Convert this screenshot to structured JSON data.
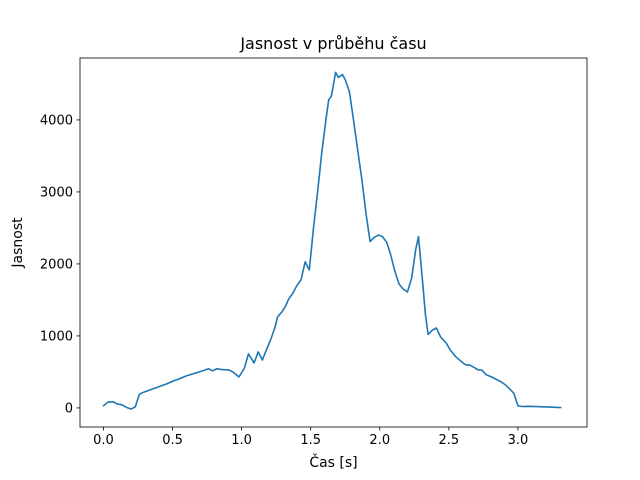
{
  "chart_data": {
    "type": "line",
    "title": "Jasnost v průběhu času",
    "xlabel": "Čas [s]",
    "ylabel": "Jasnost",
    "line_color": "#1f77b4",
    "grid": false,
    "legend": null,
    "xlim": [
      -0.17,
      3.5
    ],
    "ylim": [
      -265,
      4860
    ],
    "x_ticks": [
      0.0,
      0.5,
      1.0,
      1.5,
      2.0,
      2.5,
      3.0
    ],
    "x_tick_labels": [
      "0.0",
      "0.5",
      "1.0",
      "1.5",
      "2.0",
      "2.5",
      "3.0"
    ],
    "y_ticks": [
      0,
      1000,
      2000,
      3000,
      4000
    ],
    "y_tick_labels": [
      "0",
      "1000",
      "2000",
      "3000",
      "4000"
    ],
    "series": [
      {
        "name": "jasnost",
        "x": [
          0.0,
          0.03,
          0.07,
          0.1,
          0.13,
          0.17,
          0.2,
          0.23,
          0.26,
          0.3,
          0.35,
          0.4,
          0.45,
          0.5,
          0.55,
          0.6,
          0.65,
          0.7,
          0.74,
          0.76,
          0.79,
          0.82,
          0.85,
          0.88,
          0.91,
          0.94,
          0.98,
          1.02,
          1.05,
          1.09,
          1.12,
          1.15,
          1.18,
          1.21,
          1.24,
          1.26,
          1.29,
          1.32,
          1.34,
          1.37,
          1.4,
          1.43,
          1.46,
          1.49,
          1.52,
          1.55,
          1.58,
          1.61,
          1.63,
          1.65,
          1.68,
          1.7,
          1.73,
          1.75,
          1.78,
          1.81,
          1.84,
          1.87,
          1.9,
          1.93,
          1.96,
          1.99,
          2.02,
          2.05,
          2.08,
          2.11,
          2.14,
          2.17,
          2.2,
          2.23,
          2.26,
          2.28,
          2.31,
          2.33,
          2.35,
          2.38,
          2.41,
          2.44,
          2.48,
          2.51,
          2.55,
          2.59,
          2.62,
          2.65,
          2.68,
          2.71,
          2.74,
          2.77,
          2.81,
          2.85,
          2.88,
          2.91,
          2.95,
          2.97,
          3.0,
          3.03,
          3.08,
          3.13,
          3.18,
          3.23,
          3.27,
          3.31
        ],
        "y": [
          30,
          80,
          85,
          55,
          45,
          5,
          -15,
          15,
          190,
          225,
          260,
          295,
          330,
          370,
          405,
          445,
          475,
          505,
          530,
          545,
          515,
          545,
          535,
          530,
          525,
          495,
          430,
          555,
          750,
          625,
          778,
          665,
          810,
          945,
          1110,
          1265,
          1330,
          1420,
          1510,
          1590,
          1700,
          1780,
          2030,
          1915,
          2500,
          3000,
          3550,
          4000,
          4280,
          4330,
          4660,
          4590,
          4630,
          4560,
          4390,
          4000,
          3580,
          3180,
          2700,
          2310,
          2370,
          2400,
          2380,
          2300,
          2120,
          1890,
          1720,
          1650,
          1610,
          1800,
          2200,
          2380,
          1750,
          1300,
          1020,
          1080,
          1110,
          985,
          905,
          805,
          710,
          645,
          600,
          595,
          565,
          530,
          525,
          460,
          430,
          390,
          360,
          320,
          245,
          205,
          30,
          20,
          22,
          18,
          15,
          12,
          8,
          5
        ]
      }
    ]
  }
}
